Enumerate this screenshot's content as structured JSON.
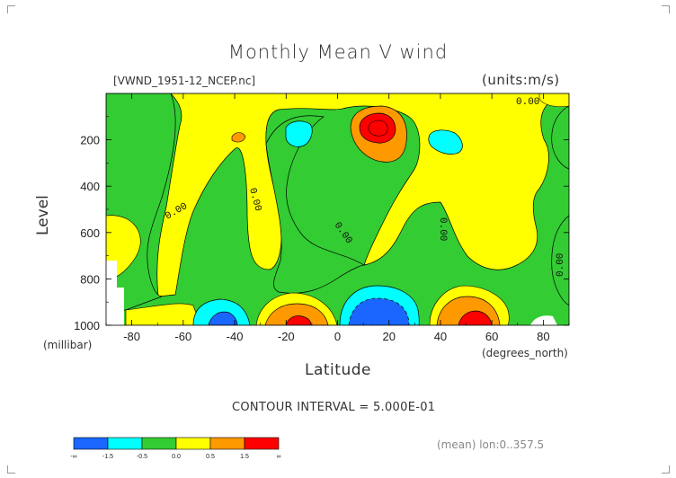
{
  "chart_data": {
    "type": "heatmap",
    "title": "Monthly Mean V wind",
    "subtitle": "[VWND_1951-12_NCEP.nc]",
    "units": "(units:m/s)",
    "xlabel": "Latitude",
    "xunit": "(degrees_north)",
    "ylabel": "Level",
    "yunit": "(millibar)",
    "xlim": [
      -90,
      90
    ],
    "ylim": [
      1000,
      0
    ],
    "x_ticks": [
      "-80",
      "-60",
      "-40",
      "-20",
      "0",
      "20",
      "40",
      "60",
      "80"
    ],
    "y_ticks": [
      "200",
      "400",
      "600",
      "800",
      "1000"
    ],
    "contour_interval": "CONTOUR INTERVAL = 5.000E-01",
    "meta": "(mean) lon:0..357.5",
    "contour_labels": [
      "0.00",
      "0.00",
      "0.00",
      "0.00",
      "0.00",
      "0.00"
    ],
    "colorbar": {
      "labels": [
        "-∞",
        "-1.5",
        "-0.5",
        "0.0",
        "0.5",
        "1.5",
        "∞"
      ],
      "colors": [
        "#1a66ff",
        "#00ffff",
        "#33cc33",
        "#ffff00",
        "#ff9900",
        "#ff0000"
      ]
    },
    "features": [
      {
        "name": "positive max",
        "lat": 12,
        "level": 150,
        "value": 1.5
      },
      {
        "name": "positive max",
        "lat": -18,
        "level": 980,
        "value": 1.5
      },
      {
        "name": "positive max",
        "lat": 55,
        "level": 980,
        "value": 1.5
      },
      {
        "name": "negative min",
        "lat": 15,
        "level": 950,
        "value": -1.5
      },
      {
        "name": "negative min",
        "lat": -42,
        "level": 970,
        "value": -1.5
      },
      {
        "name": "negative",
        "lat": -16,
        "level": 180,
        "value": -0.5
      },
      {
        "name": "negative",
        "lat": 44,
        "level": 200,
        "value": -0.5
      }
    ]
  }
}
